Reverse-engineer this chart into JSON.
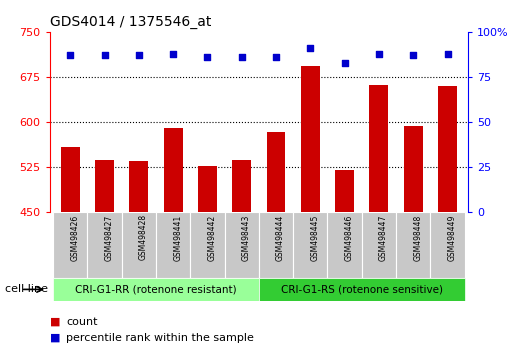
{
  "title": "GDS4014 / 1375546_at",
  "categories": [
    "GSM498426",
    "GSM498427",
    "GSM498428",
    "GSM498441",
    "GSM498442",
    "GSM498443",
    "GSM498444",
    "GSM498445",
    "GSM498446",
    "GSM498447",
    "GSM498448",
    "GSM498449"
  ],
  "bar_values": [
    559,
    537,
    536,
    590,
    527,
    537,
    583,
    693,
    521,
    662,
    594,
    660
  ],
  "bar_color": "#cc0000",
  "dot_values": [
    87,
    87,
    87,
    88,
    86,
    86,
    86,
    91,
    83,
    88,
    87,
    88
  ],
  "dot_color": "#0000cc",
  "ylim_left": [
    450,
    750
  ],
  "ylim_right": [
    0,
    100
  ],
  "yticks_left": [
    450,
    525,
    600,
    675,
    750
  ],
  "yticks_right": [
    0,
    25,
    50,
    75,
    100
  ],
  "ytick_labels_right": [
    "0",
    "25",
    "50",
    "75",
    "100%"
  ],
  "grid_values": [
    525,
    600,
    675
  ],
  "group1_label": "CRI-G1-RR (rotenone resistant)",
  "group2_label": "CRI-G1-RS (rotenone sensitive)",
  "group1_color": "#99ff99",
  "group2_color": "#33cc33",
  "group1_count": 6,
  "group2_count": 6,
  "cell_line_label": "cell line",
  "legend_count_label": "count",
  "legend_pct_label": "percentile rank within the sample",
  "xtick_bg_color": "#c8c8c8",
  "title_fontsize": 10,
  "tick_fontsize": 8,
  "xtick_fontsize": 5.5,
  "group_fontsize": 7.5,
  "legend_fontsize": 8
}
